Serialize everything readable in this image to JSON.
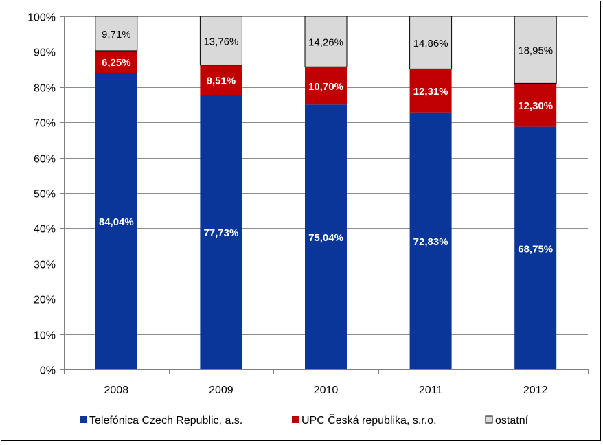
{
  "chart_data": {
    "type": "bar",
    "stacked": true,
    "percent_stacked": true,
    "categories": [
      "2008",
      "2009",
      "2010",
      "2011",
      "2012"
    ],
    "series": [
      {
        "name": "Telefónica Czech Republic, a.s.",
        "color": "#0b3699",
        "label_color": "#ffffff",
        "values": [
          84.04,
          77.73,
          75.04,
          72.83,
          68.75
        ],
        "labels": [
          "84,04%",
          "77,73%",
          "75,04%",
          "72,83%",
          "68,75%"
        ]
      },
      {
        "name": "UPC Česká republika, s.r.o.",
        "color": "#c00000",
        "label_color": "#ffffff",
        "values": [
          6.25,
          8.51,
          10.7,
          12.31,
          12.3
        ],
        "labels": [
          "6,25%",
          "8,51%",
          "10,70%",
          "12,31%",
          "12,30%"
        ]
      },
      {
        "name": "ostatní",
        "color": "#d9d9d9",
        "label_color": "#000000",
        "values": [
          9.71,
          13.76,
          14.26,
          14.86,
          18.95
        ],
        "labels": [
          "9,71%",
          "13,76%",
          "14,26%",
          "14,86%",
          "18,95%"
        ]
      }
    ],
    "y_ticks": [
      "0%",
      "10%",
      "20%",
      "30%",
      "40%",
      "50%",
      "60%",
      "70%",
      "80%",
      "90%",
      "100%"
    ],
    "ylim": [
      0,
      100
    ],
    "grid": true,
    "legend_position": "bottom",
    "title": "",
    "xlabel": "",
    "ylabel": ""
  }
}
